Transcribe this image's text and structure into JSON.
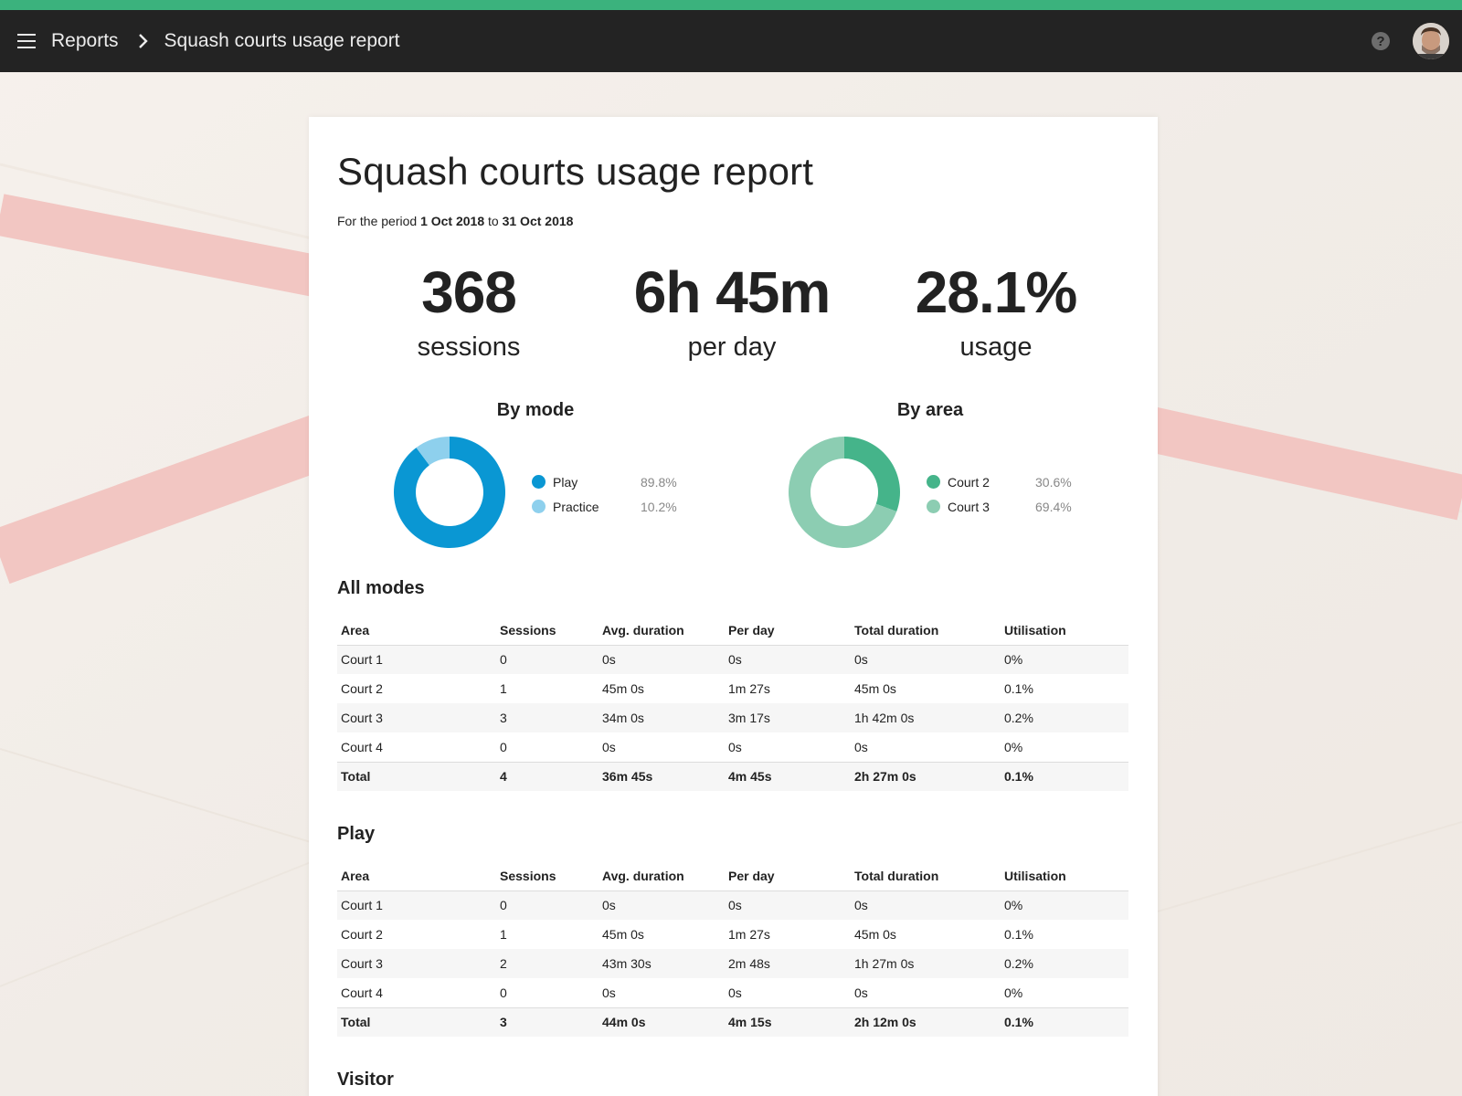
{
  "header": {
    "breadcrumb_root": "Reports",
    "breadcrumb_current": "Squash courts usage report",
    "help_label": "?",
    "accent_color": "#3bb27d"
  },
  "report": {
    "title": "Squash courts usage report",
    "period_prefix": "For the period",
    "period_start": "1 Oct 2018",
    "period_connector": "to",
    "period_end": "31 Oct 2018"
  },
  "stats": [
    {
      "value": "368",
      "label": "sessions"
    },
    {
      "value": "6h 45m",
      "label": "per day"
    },
    {
      "value": "28.1%",
      "label": "usage"
    }
  ],
  "chart_data": [
    {
      "type": "pie",
      "title": "By mode",
      "categories": [
        "Play",
        "Practice"
      ],
      "values": [
        89.8,
        10.2
      ],
      "labels": [
        "89.8%",
        "10.2%"
      ],
      "colors": [
        "#0a97d3",
        "#8ed0ed"
      ]
    },
    {
      "type": "pie",
      "title": "By area",
      "categories": [
        "Court 2",
        "Court 3"
      ],
      "values": [
        30.6,
        69.4
      ],
      "labels": [
        "30.6%",
        "69.4%"
      ],
      "colors": [
        "#45b48a",
        "#8ccdb2"
      ]
    }
  ],
  "tables": {
    "columns": [
      "Area",
      "Sessions",
      "Avg. duration",
      "Per day",
      "Total duration",
      "Utilisation"
    ],
    "all_modes": {
      "title": "All modes",
      "rows": [
        [
          "Court 1",
          "0",
          "0s",
          "0s",
          "0s",
          "0%"
        ],
        [
          "Court 2",
          "1",
          "45m 0s",
          "1m 27s",
          "45m 0s",
          "0.1%"
        ],
        [
          "Court 3",
          "3",
          "34m 0s",
          "3m 17s",
          "1h 42m 0s",
          "0.2%"
        ],
        [
          "Court 4",
          "0",
          "0s",
          "0s",
          "0s",
          "0%"
        ]
      ],
      "total": [
        "Total",
        "4",
        "36m 45s",
        "4m 45s",
        "2h 27m 0s",
        "0.1%"
      ]
    },
    "play": {
      "title": "Play",
      "rows": [
        [
          "Court 1",
          "0",
          "0s",
          "0s",
          "0s",
          "0%"
        ],
        [
          "Court 2",
          "1",
          "45m 0s",
          "1m 27s",
          "45m 0s",
          "0.1%"
        ],
        [
          "Court 3",
          "2",
          "43m 30s",
          "2m 48s",
          "1h 27m 0s",
          "0.2%"
        ],
        [
          "Court 4",
          "0",
          "0s",
          "0s",
          "0s",
          "0%"
        ]
      ],
      "total": [
        "Total",
        "3",
        "44m 0s",
        "4m 15s",
        "2h 12m 0s",
        "0.1%"
      ]
    },
    "visitor": {
      "title": "Visitor"
    }
  }
}
